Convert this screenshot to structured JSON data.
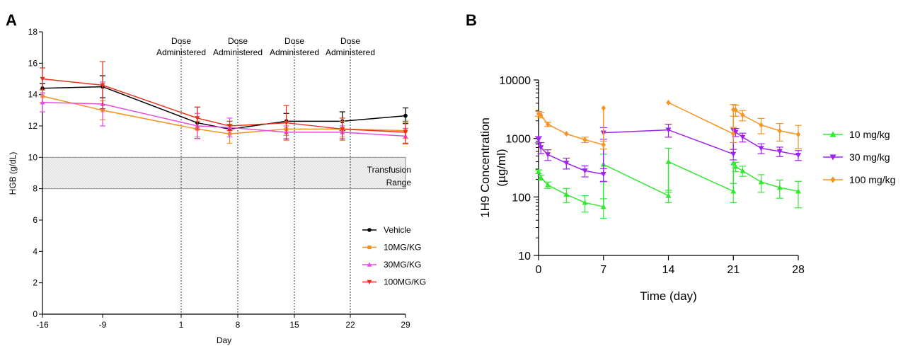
{
  "chart_data": [
    {
      "panel": "A",
      "type": "line",
      "xlabel": "Day",
      "ylabel": "HGB (g/dL)",
      "xticks": [
        "-16",
        "-9",
        "1",
        "8",
        "15",
        "22",
        "29"
      ],
      "ylim": [
        0,
        18
      ],
      "yticks": [
        0,
        2,
        4,
        6,
        8,
        10,
        12,
        14,
        16,
        18
      ],
      "legend_position": "right",
      "region": {
        "label_line1": "Transfusion",
        "label_line2": "Range",
        "y_from": 8,
        "y_to": 10
      },
      "vlines": [
        {
          "x": 1,
          "label_line1": "Dose",
          "label_line2": "Administered"
        },
        {
          "x": 8,
          "label_line1": "Dose",
          "label_line2": "Administered"
        },
        {
          "x": 15,
          "label_line1": "Dose",
          "label_line2": "Administered"
        },
        {
          "x": 22,
          "label_line1": "Dose",
          "label_line2": "Administered"
        }
      ],
      "series": [
        {
          "name": "Vehicle",
          "color": "#000000",
          "marker": "circle",
          "x": [
            -16,
            -9,
            3,
            7,
            14,
            21,
            29
          ],
          "y": [
            14.4,
            14.5,
            12.2,
            11.8,
            12.3,
            12.3,
            12.65
          ],
          "err": [
            0.3,
            0.7,
            1.0,
            0.3,
            0.5,
            0.6,
            0.5
          ]
        },
        {
          "name": "10MG/KG",
          "color": "#f39220",
          "marker": "square",
          "x": [
            -16,
            -9,
            3,
            7,
            14,
            21,
            29
          ],
          "y": [
            13.9,
            13.0,
            11.8,
            11.5,
            11.8,
            11.8,
            11.7
          ],
          "err": [
            0.4,
            0.6,
            0.5,
            0.6,
            0.4,
            0.5,
            0.5
          ]
        },
        {
          "name": "30MG/KG",
          "color": "#e44ee6",
          "marker": "triangle",
          "x": [
            -16,
            -9,
            3,
            7,
            14,
            21,
            29
          ],
          "y": [
            13.5,
            13.4,
            12.0,
            11.9,
            11.6,
            11.6,
            11.35
          ],
          "err": [
            0.6,
            1.4,
            0.8,
            0.6,
            0.4,
            0.4,
            0.5
          ]
        },
        {
          "name": "100MG/KG",
          "color": "#e8321c",
          "marker": "triangle-down",
          "x": [
            -16,
            -9,
            3,
            7,
            14,
            21,
            29
          ],
          "y": [
            15.0,
            14.6,
            12.5,
            12.0,
            12.2,
            11.8,
            11.6
          ],
          "err": [
            0.7,
            1.5,
            0.7,
            0.3,
            1.1,
            0.7,
            0.7
          ]
        }
      ]
    },
    {
      "panel": "B",
      "type": "line",
      "yscale": "log",
      "xlabel": "Time (day)",
      "ylabel_line1": "1H9 Concentration",
      "ylabel_line2": "(µg/ml)",
      "xticks": [
        0,
        7,
        14,
        21,
        28
      ],
      "xlim": [
        0,
        28
      ],
      "ylim": [
        10,
        10000
      ],
      "yticks": [
        "10",
        "100",
        "1000",
        "10000"
      ],
      "legend_position": "right",
      "series": [
        {
          "name": "10 mg/kg",
          "color": "#33e833",
          "marker": "triangle",
          "segments": [
            [
              [
                0,
                270
              ],
              [
                0.25,
                215
              ],
              [
                1,
                160
              ],
              [
                3,
                110
              ],
              [
                5,
                80
              ],
              [
                7,
                68
              ]
            ],
            [
              [
                7,
                360
              ],
              [
                14,
                105
              ]
            ],
            [
              [
                14,
                400
              ],
              [
                21,
                125
              ]
            ],
            [
              [
                21,
                380
              ],
              [
                21.25,
                330
              ],
              [
                22,
                280
              ],
              [
                24,
                180
              ],
              [
                26,
                145
              ],
              [
                28,
                125
              ]
            ]
          ],
          "err": [
            [
              0,
              270,
              20
            ],
            [
              0.25,
              215,
              20
            ],
            [
              1,
              160,
              20
            ],
            [
              3,
              110,
              30
            ],
            [
              5,
              80,
              25
            ],
            [
              7,
              68,
              25
            ],
            [
              7,
              360,
              180
            ],
            [
              14,
              105,
              25
            ],
            [
              14,
              400,
              280
            ],
            [
              21,
              125,
              45
            ],
            [
              21.25,
              330,
              60
            ],
            [
              22,
              280,
              55
            ],
            [
              24,
              180,
              60
            ],
            [
              26,
              145,
              50
            ],
            [
              28,
              125,
              60
            ]
          ]
        },
        {
          "name": "30 mg/kg",
          "color": "#a020f0",
          "marker": "triangle-down",
          "segments": [
            [
              [
                0,
                960
              ],
              [
                0.25,
                700
              ],
              [
                1,
                530
              ],
              [
                3,
                380
              ],
              [
                5,
                280
              ],
              [
                7,
                245
              ]
            ],
            [
              [
                7,
                1250
              ],
              [
                14,
                1400
              ],
              [
                21,
                540
              ]
            ],
            [
              [
                21,
                1380
              ],
              [
                21.25,
                1280
              ],
              [
                22,
                1050
              ],
              [
                24,
                680
              ],
              [
                26,
                600
              ],
              [
                28,
                520
              ]
            ]
          ],
          "err": [
            [
              0,
              960,
              120
            ],
            [
              0.25,
              700,
              150
            ],
            [
              1,
              530,
              110
            ],
            [
              3,
              380,
              80
            ],
            [
              5,
              280,
              60
            ],
            [
              7,
              245,
              60
            ],
            [
              7,
              1250,
              280
            ],
            [
              14,
              1400,
              350
            ],
            [
              21,
              540,
              110
            ],
            [
              21.25,
              1280,
              200
            ],
            [
              22,
              1050,
              180
            ],
            [
              24,
              680,
              130
            ],
            [
              26,
              600,
              110
            ],
            [
              28,
              520,
              100
            ]
          ]
        },
        {
          "name": "100 mg/kg",
          "color": "#f7931e",
          "marker": "diamond",
          "segments": [
            [
              [
                0,
                2650
              ],
              [
                0.25,
                2500
              ],
              [
                1,
                1750
              ],
              [
                3,
                1200
              ],
              [
                5,
                950
              ],
              [
                7,
                780
              ]
            ],
            [
              [
                7,
                3300
              ]
            ],
            [
              [
                14,
                4100
              ],
              [
                21,
                1200
              ]
            ],
            [
              [
                21,
                3100
              ],
              [
                21.25,
                3050
              ],
              [
                22,
                2500
              ],
              [
                24,
                1700
              ],
              [
                26,
                1350
              ],
              [
                28,
                1170
              ]
            ]
          ],
          "err": [
            [
              0,
              2650,
              250
            ],
            [
              0.25,
              2500,
              250
            ],
            [
              1,
              1750,
              150
            ],
            [
              5,
              950,
              100
            ],
            [
              7,
              780,
              120
            ],
            [
              21,
              1200,
              350
            ],
            [
              21,
              3100,
              700
            ],
            [
              21.25,
              3050,
              650
            ],
            [
              22,
              2500,
              500
            ],
            [
              24,
              1700,
              500
            ],
            [
              26,
              1350,
              450
            ],
            [
              28,
              1170,
              500
            ]
          ]
        }
      ]
    }
  ],
  "panel_labels": {
    "a": "A",
    "b": "B"
  }
}
